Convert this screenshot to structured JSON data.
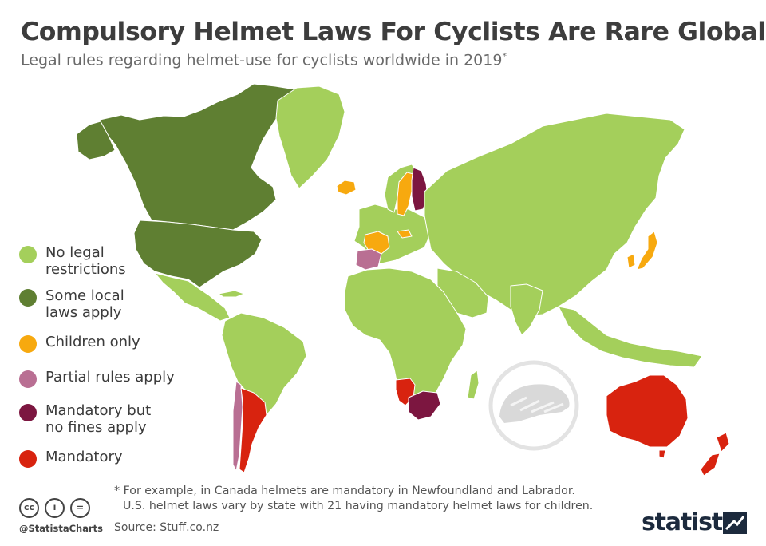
{
  "header": {
    "title": "Compulsory Helmet Laws For Cyclists Are Rare Globally",
    "subtitle": "Legal rules regarding helmet-use for cyclists worldwide in 2019",
    "subtitle_mark": "*"
  },
  "colors": {
    "ocean": "#ffffff",
    "no_legal": "#a4cf5b",
    "local_laws": "#5f7f32",
    "children_only": "#f7a90f",
    "partial": "#b96f93",
    "mandatory_no_fines": "#7c1640",
    "mandatory": "#d8230f",
    "border": "#ffffff"
  },
  "legend": [
    {
      "label": "No legal\nrestrictions",
      "color": "#a4cf5b"
    },
    {
      "label": "Some local\nlaws apply",
      "color": "#5f7f32"
    },
    {
      "label": "Children only",
      "color": "#f7a90f"
    },
    {
      "label": "Partial rules apply",
      "color": "#b96f93"
    },
    {
      "label": "Mandatory but\nno fines apply",
      "color": "#7c1640"
    },
    {
      "label": "Mandatory",
      "color": "#d8230f"
    }
  ],
  "map": {
    "countries": [
      {
        "name": "Canada",
        "category": "Some local laws apply"
      },
      {
        "name": "United States",
        "category": "Some local laws apply"
      },
      {
        "name": "Argentina",
        "category": "Mandatory"
      },
      {
        "name": "Chile",
        "category": "Partial rules apply"
      },
      {
        "name": "Spain",
        "category": "Partial rules apply"
      },
      {
        "name": "France",
        "category": "Children only"
      },
      {
        "name": "Sweden",
        "category": "Children only"
      },
      {
        "name": "Iceland",
        "category": "Children only"
      },
      {
        "name": "Austria",
        "category": "Children only"
      },
      {
        "name": "Japan",
        "category": "Children only"
      },
      {
        "name": "South Korea",
        "category": "Children only"
      },
      {
        "name": "Finland",
        "category": "Mandatory but no fines apply"
      },
      {
        "name": "South Africa",
        "category": "Mandatory but no fines apply"
      },
      {
        "name": "Namibia",
        "category": "Mandatory"
      },
      {
        "name": "Australia",
        "category": "Mandatory"
      },
      {
        "name": "New Zealand",
        "category": "Mandatory"
      }
    ]
  },
  "footnote": {
    "line1": "* For example, in Canada helmets are mandatory in Newfoundland and Labrador.",
    "line2": "U.S. helmet laws vary by state with 21 having mandatory helmet laws for children."
  },
  "source": "Source: Stuff.co.nz",
  "handle": "@StatistaCharts",
  "cc_icons": [
    "creative-commons",
    "attribution",
    "no-derivatives"
  ],
  "cc_glyphs": [
    "cc",
    "i",
    "="
  ],
  "brand": "statista"
}
